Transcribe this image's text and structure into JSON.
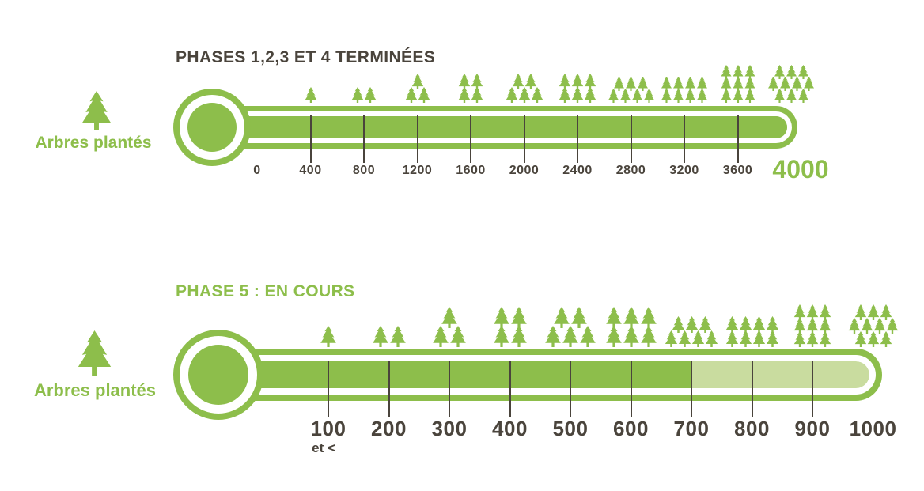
{
  "colors": {
    "green": "#8DBE4B",
    "light_green": "#C9DC9F",
    "dark_text": "#4A443C",
    "background": "#FFFFFF"
  },
  "chart_data": [
    {
      "type": "pictograph-thermometer",
      "title": "PHASES 1,2,3 ET 4 TERMINÉES",
      "unit_label": "Arbres plantés",
      "value": 4000,
      "max": 4000,
      "tick_step": 400,
      "ticks": [
        {
          "value": 0,
          "label": "0",
          "line": false
        },
        {
          "value": 400,
          "label": "400",
          "line": true
        },
        {
          "value": 800,
          "label": "800",
          "line": true
        },
        {
          "value": 1200,
          "label": "1200",
          "line": true
        },
        {
          "value": 1600,
          "label": "1600",
          "line": true
        },
        {
          "value": 2000,
          "label": "2000",
          "line": true
        },
        {
          "value": 2400,
          "label": "2400",
          "line": true
        },
        {
          "value": 2800,
          "label": "2800",
          "line": true
        },
        {
          "value": 3200,
          "label": "3200",
          "line": true
        },
        {
          "value": 3600,
          "label": "3600",
          "line": true
        }
      ],
      "end_label": "4000",
      "tree_clusters": [
        {
          "value": 400,
          "trees": 1
        },
        {
          "value": 800,
          "trees": 2
        },
        {
          "value": 1200,
          "trees": 3
        },
        {
          "value": 1600,
          "trees": 4
        },
        {
          "value": 2000,
          "trees": 5
        },
        {
          "value": 2400,
          "trees": 6
        },
        {
          "value": 2800,
          "trees": 7
        },
        {
          "value": 3200,
          "trees": 8
        },
        {
          "value": 3600,
          "trees": 9
        },
        {
          "value": 4000,
          "trees": 10
        }
      ]
    },
    {
      "type": "pictograph-thermometer",
      "title": "PHASE 5 : EN COURS",
      "unit_label": "Arbres plantés",
      "value": 700,
      "max": 1000,
      "tick_step": 100,
      "ticks": [
        {
          "value": 100,
          "label": "100",
          "sub_label": "et <",
          "line": true
        },
        {
          "value": 200,
          "label": "200",
          "line": true
        },
        {
          "value": 300,
          "label": "300",
          "line": true
        },
        {
          "value": 400,
          "label": "400",
          "line": true
        },
        {
          "value": 500,
          "label": "500",
          "line": true
        },
        {
          "value": 600,
          "label": "600",
          "line": true
        },
        {
          "value": 700,
          "label": "700",
          "line": true
        },
        {
          "value": 800,
          "label": "800",
          "line": true
        },
        {
          "value": 900,
          "label": "900",
          "line": true
        },
        {
          "value": 1000,
          "label": "1000",
          "line": false
        }
      ],
      "tree_clusters": [
        {
          "value": 100,
          "trees": 1
        },
        {
          "value": 200,
          "trees": 2
        },
        {
          "value": 300,
          "trees": 3
        },
        {
          "value": 400,
          "trees": 4
        },
        {
          "value": 500,
          "trees": 5
        },
        {
          "value": 600,
          "trees": 6
        },
        {
          "value": 700,
          "trees": 7
        },
        {
          "value": 800,
          "trees": 8
        },
        {
          "value": 900,
          "trees": 9
        },
        {
          "value": 1000,
          "trees": 10
        }
      ]
    }
  ]
}
